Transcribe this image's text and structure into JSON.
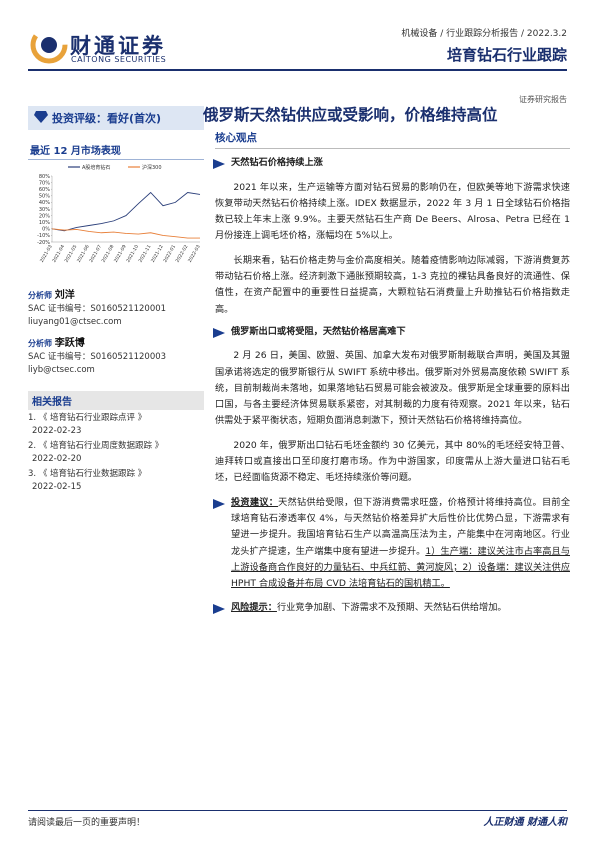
{
  "header": {
    "company": "财通证券",
    "company_en": "CAITONG SECURITIES",
    "breadcrumb": "机械设备 / 行业跟踪分析报告 / 2022.3.2",
    "report_title": "培育钻石行业跟踪",
    "report_type": "证券研究报告"
  },
  "sidebar": {
    "rating": "投资评级：看好(首次)",
    "market_title": "最近 12 月市场表现",
    "market_chart": {
      "type": "line",
      "categories": [
        "2021-03",
        "2021-04",
        "2021-05",
        "2021-06",
        "2021-07",
        "2021-08",
        "2021-09",
        "2021-10",
        "2021-11",
        "2021-12",
        "2022-01",
        "2022-02",
        "2022-03"
      ],
      "series": [
        {
          "name": "A股培育钻石",
          "color": "#2b3f7a",
          "values": [
            0,
            -3,
            2,
            5,
            8,
            12,
            20,
            38,
            55,
            35,
            40,
            55,
            52
          ]
        },
        {
          "name": "沪深300",
          "color": "#e8803a",
          "values": [
            0,
            -2,
            -1,
            -4,
            -6,
            -5,
            -7,
            -8,
            -6,
            -10,
            -12,
            -14,
            -14
          ]
        }
      ],
      "ylim": [
        -20,
        80
      ],
      "yticks": [
        {
          "value": 80,
          "label": "80%"
        },
        {
          "value": 70,
          "label": "70%"
        },
        {
          "value": 60,
          "label": "60%"
        },
        {
          "value": 50,
          "label": "50%"
        },
        {
          "value": 40,
          "label": "40%"
        },
        {
          "value": 30,
          "label": "30%"
        },
        {
          "value": 20,
          "label": "20%"
        },
        {
          "value": 10,
          "label": "10%"
        },
        {
          "value": 0,
          "label": "0%"
        },
        {
          "value": -10,
          "label": "-10%"
        },
        {
          "value": -20,
          "label": "-20%"
        }
      ]
    },
    "analysts": [
      {
        "role": "分析师",
        "name": "刘洋",
        "sac": "SAC 证书编号：S0160521120001",
        "email": "liuyang01@ctsec.com"
      },
      {
        "role": "分析师",
        "name": "李跃博",
        "sac": "SAC 证书编号：S0160521120003",
        "email": "liyb@ctsec.com"
      }
    ],
    "related_title": "相关报告",
    "related": [
      {
        "index": "1.",
        "title": "《 培育钻石行业跟踪点评 》",
        "date": "2022-02-23"
      },
      {
        "index": "2.",
        "title": "《 培育钻石行业周度数据跟踪 》",
        "date": "2022-02-20"
      },
      {
        "index": "3.",
        "title": "《 培育钻石行业数据跟踪 》",
        "date": "2022-02-15"
      }
    ]
  },
  "main": {
    "title": "俄罗斯天然钻供应或受影响，价格维持高位",
    "core": "核心观点",
    "sections": [
      {
        "heading": "天然钻石价格持续上涨",
        "paragraphs": [
          "2021 年以来，生产运输等方面对钻石贸易的影响仍在，但欧美等地下游需求快速恢复带动天然钻石价格持续上涨。IDEX 数据显示，2022 年 3 月 1 日全球钻石价格指数已较上年末上涨 9.9%。主要天然钻石生产商 De Beers、Alrosa、Petra 已经在 1 月份接连上调毛坯价格，涨幅均在 5%以上。",
          "长期来看，钻石价格走势与金价高度相关。随着疫情影响边际减弱，下游消费复苏带动钻石价格上涨。经济刺激下通胀预期较高，1-3 克拉的裸钻具备良好的流通性、保值性，在资产配置中的重要性日益提高，大颗粒钻石消费量上升助推钻石价格指数走高。"
        ]
      },
      {
        "heading": "俄罗斯出口或将受阻，天然钻价格居高难下",
        "paragraphs": [
          "2 月 26 日，美国、欧盟、英国、加拿大发布对俄罗斯制裁联合声明，美国及其盟国承诺将选定的俄罗斯银行从 SWIFT 系统中移出。俄罗斯对外贸易高度依赖 SWIFT 系统，目前制裁尚未落地，如果落地钻石贸易可能会被波及。俄罗斯是全球重要的原料出口国，与各主要经济体贸易联系紧密，对其制裁的力度有待观察。2021 年以来，钻石供需处于紧平衡状态，短期负面消息刺激下，预计天然钻石价格将维持高位。",
          "2020 年，俄罗斯出口钻石毛坯金额约 30 亿美元，其中 80%的毛坯经安特卫普、迪拜转口或直接出口至印度打磨市场。作为中游国家，印度需从上游大量进口钻石毛坯，已经面临货源不稳定、毛坯持续涨价等问题。"
        ]
      }
    ],
    "recommendation": {
      "label": "投资建议：",
      "text": "天然钻供给受限，但下游消费需求旺盛，价格预计将维持高位。目前全球培育钻石渗透率仅 4%，与天然钻价格差异扩大后性价比优势凸显，下游需求有望进一步提升。我国培育钻石生产以高温高压法为主，产能集中在河南地区。行业龙头扩产提速，生产端集中度有望进一步提升。",
      "picks": "1）生产端：建议关注市占率高且与上游设备商合作良好的力量钻石、中兵红箭、黄河旋风；2）设备端：建议关注供应 HPHT 合成设备并布局 CVD 法培育钻石的国机精工。"
    },
    "risk": {
      "label": "风险提示：",
      "text": "行业竞争加剧、下游需求不及预期、天然钻石供给增加。"
    }
  },
  "footer": {
    "disclaimer": "请阅读最后一页的重要声明！",
    "slogan": "人正财通 财通人和"
  }
}
